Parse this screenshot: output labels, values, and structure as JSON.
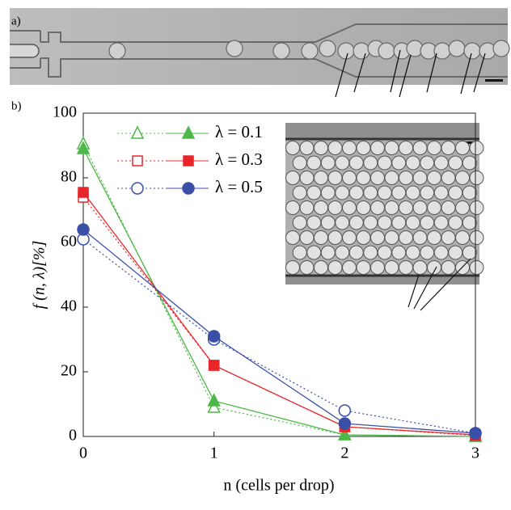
{
  "panel_a_label": "a)",
  "chart_data": {
    "type": "line",
    "panel_label": "b)",
    "x_label": "n (cells per drop)",
    "y_label": "f (n, λ)[%]",
    "x": [
      0,
      1,
      2,
      3
    ],
    "series": [
      {
        "name": "λ = 0.1",
        "color": "#4db848",
        "marker": "triangle",
        "values": [
          89,
          11,
          0.5,
          0
        ],
        "theory_values": [
          90.5,
          9,
          0.5,
          0
        ]
      },
      {
        "name": "λ = 0.3",
        "color": "#e8262a",
        "marker": "square",
        "values": [
          75.5,
          22,
          3,
          0.5
        ],
        "theory_values": [
          74,
          22,
          3,
          0.3
        ]
      },
      {
        "name": "λ = 0.5",
        "color": "#3a50a8",
        "marker": "circle",
        "values": [
          64,
          31,
          4,
          1
        ],
        "theory_values": [
          61,
          30,
          8,
          1
        ]
      }
    ],
    "xlim": [
      0,
      3
    ],
    "ylim": [
      0,
      100
    ],
    "xticks": [
      0,
      1,
      2,
      3
    ],
    "yticks": [
      0,
      20,
      40,
      60,
      80,
      100
    ]
  }
}
